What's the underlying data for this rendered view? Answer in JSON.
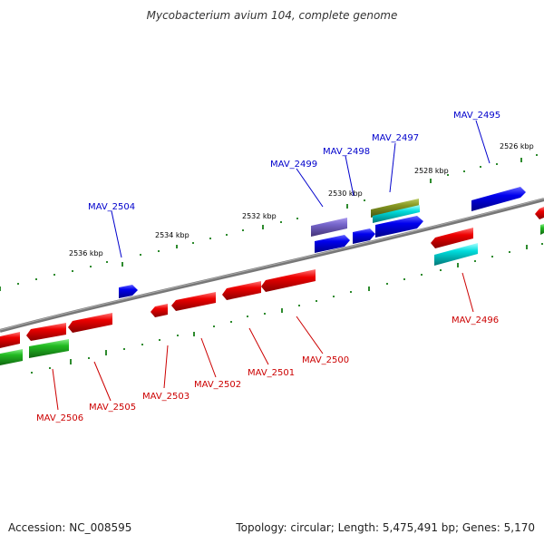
{
  "title": "Mycobacterium avium 104, complete genome",
  "footer": {
    "accession": "Accession: NC_008595",
    "summary": "Topology: circular; Length: 5,475,491 bp; Genes: 5,170"
  },
  "colors": {
    "backbone": "#808080",
    "tick_green": "#2e8b2e",
    "forward_label": "#0000cc",
    "reverse_label": "#cc0000",
    "forward_gene": "#0000ee",
    "reverse_gene": "#ee0000",
    "cyan_gene": "#00dddd",
    "green_gene": "#22bb22",
    "olive_gene": "#889922",
    "purple_gene": "#7766cc"
  },
  "scale_labels": [
    "2526 kbp",
    "2528 kbp",
    "2530 kbp",
    "2532 kbp",
    "2534 kbp",
    "2536 kbp"
  ],
  "forward_labels": [
    "MAV_2495",
    "MAV_2497",
    "MAV_2498",
    "MAV_2499",
    "MAV_2504"
  ],
  "reverse_labels": [
    "MAV_2496",
    "MAV_2500",
    "MAV_2501",
    "MAV_2502",
    "MAV_2503",
    "MAV_2505",
    "MAV_2506"
  ]
}
